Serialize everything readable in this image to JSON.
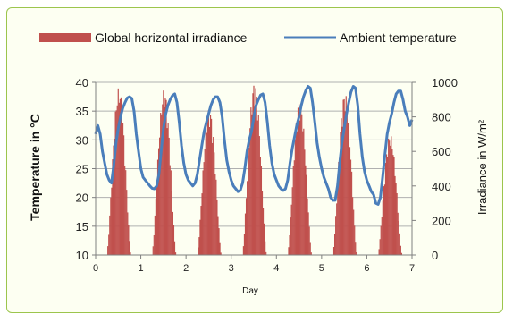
{
  "chart_data": {
    "type": "bar+line",
    "title": "",
    "xlabel": "Day",
    "ylabel_left": "Temperature in °C",
    "ylabel_right": "Irradiance in W/m²",
    "xlim": [
      0,
      7
    ],
    "ylim_left": [
      10,
      40
    ],
    "ylim_right": [
      0,
      1000
    ],
    "x_ticks": [
      0,
      1,
      2,
      3,
      4,
      5,
      6,
      7
    ],
    "y_left_ticks": [
      10,
      15,
      20,
      25,
      30,
      35,
      40
    ],
    "y_right_ticks": [
      0,
      200,
      400,
      600,
      800,
      1000
    ],
    "grid": "horizontal",
    "legend_position": "top",
    "series": [
      {
        "name": "Global horizontal irradiance",
        "kind": "bar",
        "axis": "right",
        "color": "#c0504d",
        "days": [
          {
            "start": 0.25,
            "end": 0.78,
            "peak": 970
          },
          {
            "start": 1.25,
            "end": 1.78,
            "peak": 960
          },
          {
            "start": 2.25,
            "end": 2.78,
            "peak": 850
          },
          {
            "start": 3.25,
            "end": 3.78,
            "peak": 1000
          },
          {
            "start": 4.25,
            "end": 4.78,
            "peak": 900
          },
          {
            "start": 5.25,
            "end": 5.78,
            "peak": 940
          },
          {
            "start": 6.25,
            "end": 6.78,
            "peak": 700
          }
        ]
      },
      {
        "name": "Ambient temperature",
        "kind": "line",
        "axis": "left",
        "color": "#4a7ebb",
        "points": [
          [
            0.0,
            31.0
          ],
          [
            0.05,
            32.5
          ],
          [
            0.1,
            31.0
          ],
          [
            0.15,
            28.0
          ],
          [
            0.2,
            26.0
          ],
          [
            0.25,
            24.0
          ],
          [
            0.3,
            23.0
          ],
          [
            0.35,
            22.5
          ],
          [
            0.4,
            25.5
          ],
          [
            0.45,
            29.5
          ],
          [
            0.5,
            32.0
          ],
          [
            0.55,
            34.0
          ],
          [
            0.6,
            35.5
          ],
          [
            0.65,
            36.5
          ],
          [
            0.7,
            37.3
          ],
          [
            0.75,
            37.5
          ],
          [
            0.8,
            37.2
          ],
          [
            0.85,
            35.0
          ],
          [
            0.9,
            31.0
          ],
          [
            0.95,
            28.0
          ],
          [
            1.0,
            25.0
          ],
          [
            1.05,
            23.5
          ],
          [
            1.1,
            23.0
          ],
          [
            1.15,
            22.5
          ],
          [
            1.2,
            22.0
          ],
          [
            1.25,
            21.6
          ],
          [
            1.3,
            21.5
          ],
          [
            1.35,
            22.0
          ],
          [
            1.4,
            24.0
          ],
          [
            1.45,
            28.0
          ],
          [
            1.5,
            32.0
          ],
          [
            1.55,
            34.5
          ],
          [
            1.6,
            36.0
          ],
          [
            1.65,
            37.0
          ],
          [
            1.7,
            37.7
          ],
          [
            1.75,
            38.0
          ],
          [
            1.8,
            36.5
          ],
          [
            1.85,
            33.0
          ],
          [
            1.9,
            29.0
          ],
          [
            1.95,
            26.0
          ],
          [
            2.0,
            24.0
          ],
          [
            2.05,
            23.0
          ],
          [
            2.1,
            22.5
          ],
          [
            2.15,
            22.0
          ],
          [
            2.2,
            22.5
          ],
          [
            2.25,
            24.0
          ],
          [
            2.3,
            26.5
          ],
          [
            2.35,
            29.0
          ],
          [
            2.4,
            31.5
          ],
          [
            2.45,
            33.0
          ],
          [
            2.5,
            34.5
          ],
          [
            2.55,
            36.0
          ],
          [
            2.6,
            37.0
          ],
          [
            2.65,
            37.5
          ],
          [
            2.7,
            37.5
          ],
          [
            2.75,
            36.5
          ],
          [
            2.8,
            34.0
          ],
          [
            2.85,
            30.0
          ],
          [
            2.9,
            26.5
          ],
          [
            2.95,
            24.5
          ],
          [
            3.0,
            23.0
          ],
          [
            3.05,
            22.0
          ],
          [
            3.1,
            21.5
          ],
          [
            3.15,
            21.0
          ],
          [
            3.2,
            21.2
          ],
          [
            3.25,
            22.5
          ],
          [
            3.3,
            25.0
          ],
          [
            3.35,
            28.0
          ],
          [
            3.4,
            30.0
          ],
          [
            3.45,
            31.5
          ],
          [
            3.5,
            34.0
          ],
          [
            3.55,
            36.0
          ],
          [
            3.6,
            37.0
          ],
          [
            3.65,
            37.8
          ],
          [
            3.7,
            38.0
          ],
          [
            3.75,
            36.5
          ],
          [
            3.8,
            33.0
          ],
          [
            3.85,
            29.0
          ],
          [
            3.9,
            26.0
          ],
          [
            3.95,
            24.0
          ],
          [
            4.0,
            23.0
          ],
          [
            4.05,
            22.0
          ],
          [
            4.1,
            21.5
          ],
          [
            4.15,
            21.2
          ],
          [
            4.2,
            21.5
          ],
          [
            4.25,
            23.0
          ],
          [
            4.3,
            26.0
          ],
          [
            4.35,
            28.5
          ],
          [
            4.4,
            30.5
          ],
          [
            4.45,
            32.5
          ],
          [
            4.5,
            34.0
          ],
          [
            4.55,
            36.0
          ],
          [
            4.6,
            37.5
          ],
          [
            4.65,
            38.6
          ],
          [
            4.7,
            39.3
          ],
          [
            4.75,
            39.0
          ],
          [
            4.8,
            36.5
          ],
          [
            4.85,
            33.0
          ],
          [
            4.9,
            29.5
          ],
          [
            4.95,
            27.0
          ],
          [
            5.0,
            25.0
          ],
          [
            5.05,
            23.5
          ],
          [
            5.1,
            22.5
          ],
          [
            5.15,
            21.5
          ],
          [
            5.2,
            20.0
          ],
          [
            5.25,
            19.5
          ],
          [
            5.3,
            19.5
          ],
          [
            5.35,
            22.0
          ],
          [
            5.4,
            26.0
          ],
          [
            5.45,
            29.5
          ],
          [
            5.5,
            32.0
          ],
          [
            5.55,
            34.5
          ],
          [
            5.6,
            36.5
          ],
          [
            5.65,
            38.3
          ],
          [
            5.7,
            39.3
          ],
          [
            5.75,
            39.0
          ],
          [
            5.8,
            36.0
          ],
          [
            5.85,
            31.0
          ],
          [
            5.9,
            27.0
          ],
          [
            5.95,
            24.5
          ],
          [
            6.0,
            23.0
          ],
          [
            6.05,
            22.0
          ],
          [
            6.1,
            21.0
          ],
          [
            6.15,
            20.5
          ],
          [
            6.2,
            19.0
          ],
          [
            6.25,
            18.8
          ],
          [
            6.3,
            20.0
          ],
          [
            6.35,
            23.5
          ],
          [
            6.4,
            27.5
          ],
          [
            6.45,
            31.0
          ],
          [
            6.5,
            33.0
          ],
          [
            6.55,
            34.5
          ],
          [
            6.6,
            36.5
          ],
          [
            6.65,
            38.0
          ],
          [
            6.7,
            38.5
          ],
          [
            6.75,
            38.5
          ],
          [
            6.8,
            37.0
          ],
          [
            6.85,
            35.0
          ],
          [
            6.9,
            34.0
          ],
          [
            6.95,
            32.5
          ],
          [
            7.0,
            33.5
          ]
        ]
      }
    ]
  }
}
